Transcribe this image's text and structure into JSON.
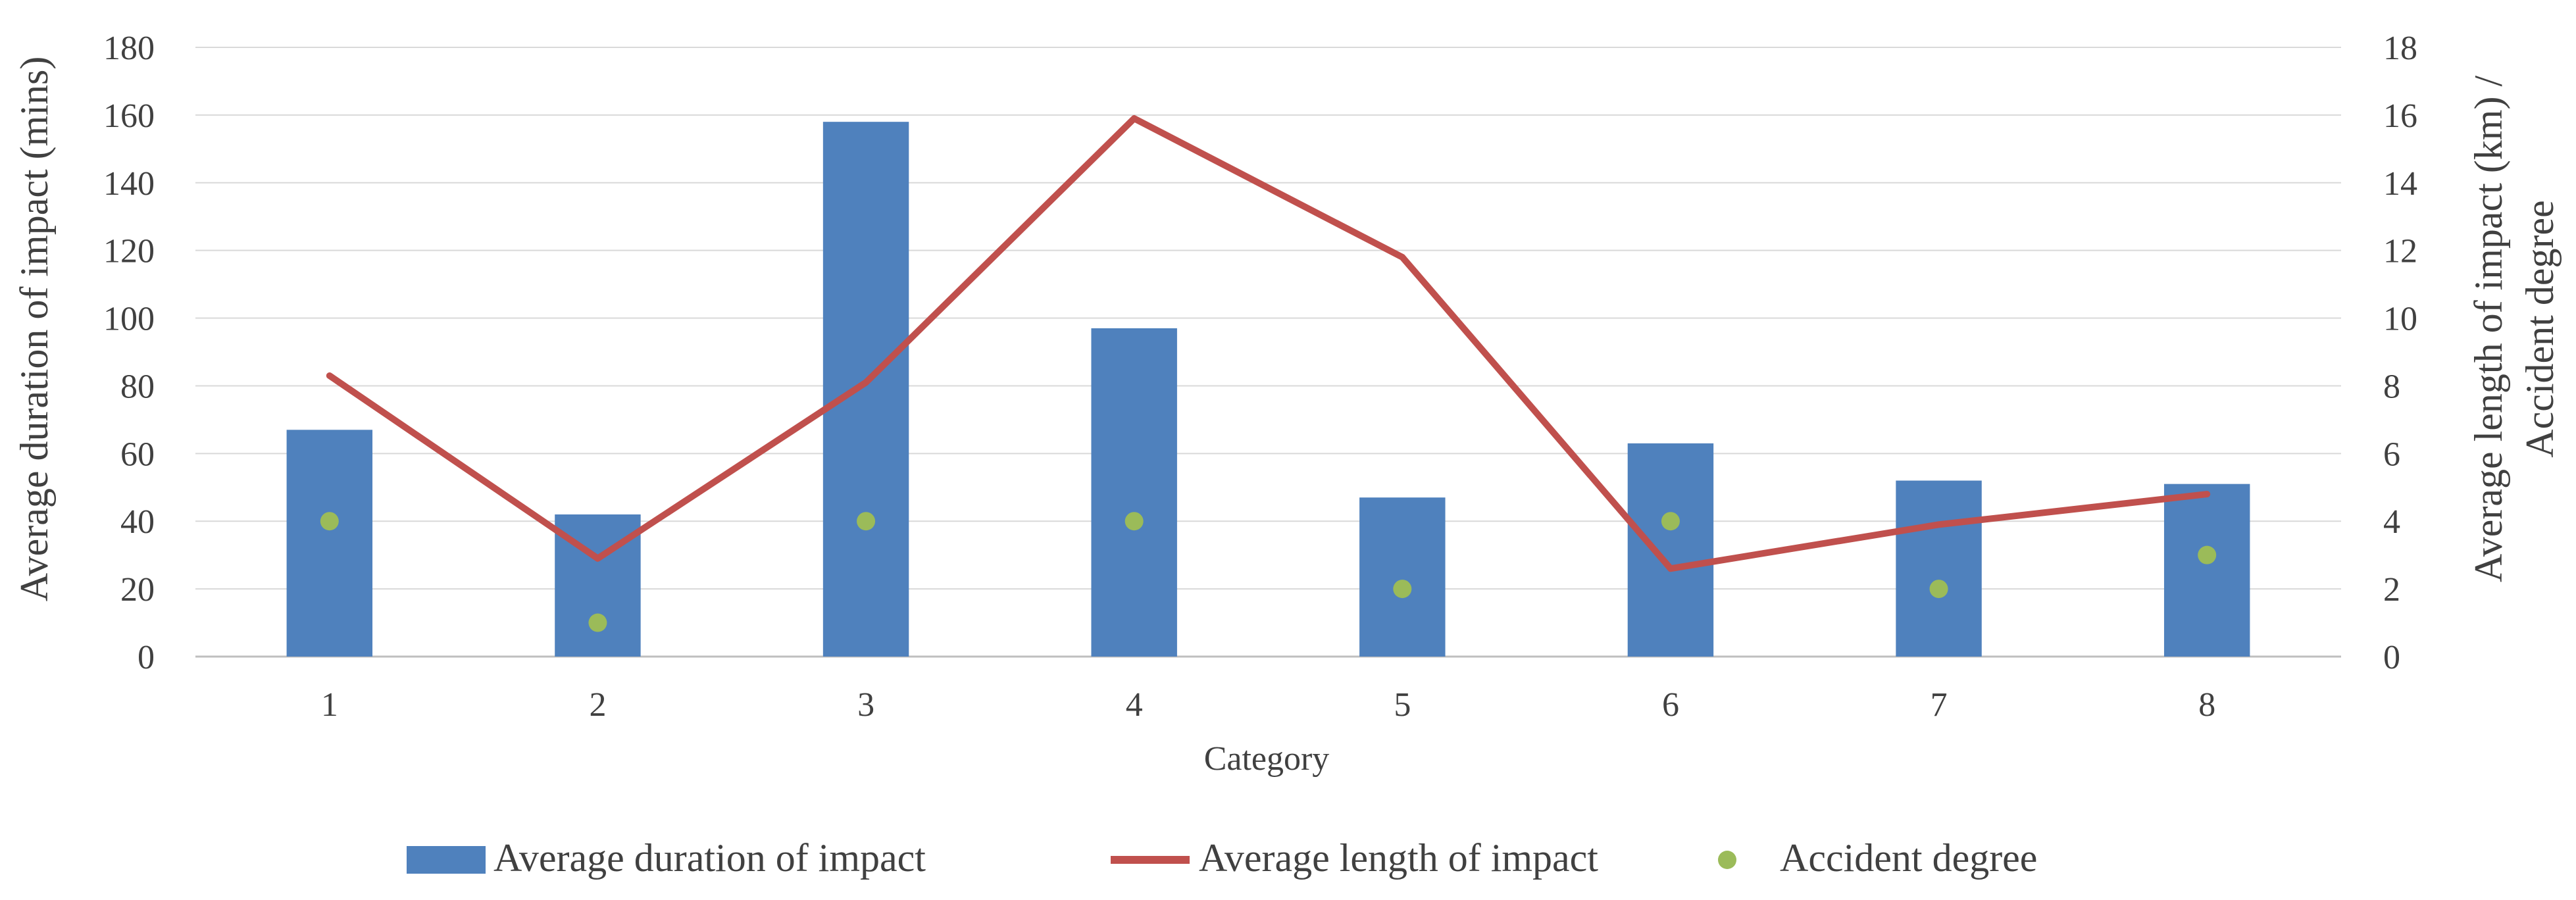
{
  "chart_data": {
    "type": "bar",
    "title": "",
    "xlabel": "Category",
    "ylabel": "Average duration of impact (mins)",
    "y2label_line1": "Average length of impact (km) /",
    "y2label_line2": "Accident degree",
    "categories": [
      "1",
      "2",
      "3",
      "4",
      "5",
      "6",
      "7",
      "8"
    ],
    "ylim": [
      0,
      180
    ],
    "yticks": [
      0,
      20,
      40,
      60,
      80,
      100,
      120,
      140,
      160,
      180
    ],
    "y2lim": [
      0,
      18
    ],
    "y2ticks": [
      0,
      2,
      4,
      6,
      8,
      10,
      12,
      14,
      16,
      18
    ],
    "grid": true,
    "legend_position": "bottom",
    "series": [
      {
        "name": "Average duration of impact",
        "kind": "bar",
        "axis": "left",
        "color": "#4F81BD",
        "values": [
          67,
          42,
          158,
          97,
          47,
          63,
          52,
          51
        ]
      },
      {
        "name": "Average length of impact",
        "kind": "line",
        "axis": "right",
        "color": "#C0504D",
        "values": [
          8.3,
          2.9,
          8.1,
          15.9,
          11.8,
          2.6,
          3.9,
          4.8
        ]
      },
      {
        "name": "Accident degree",
        "kind": "scatter",
        "axis": "right",
        "color": "#9BBB59",
        "values": [
          4,
          1,
          4,
          4,
          2,
          4,
          2,
          3
        ]
      }
    ]
  }
}
